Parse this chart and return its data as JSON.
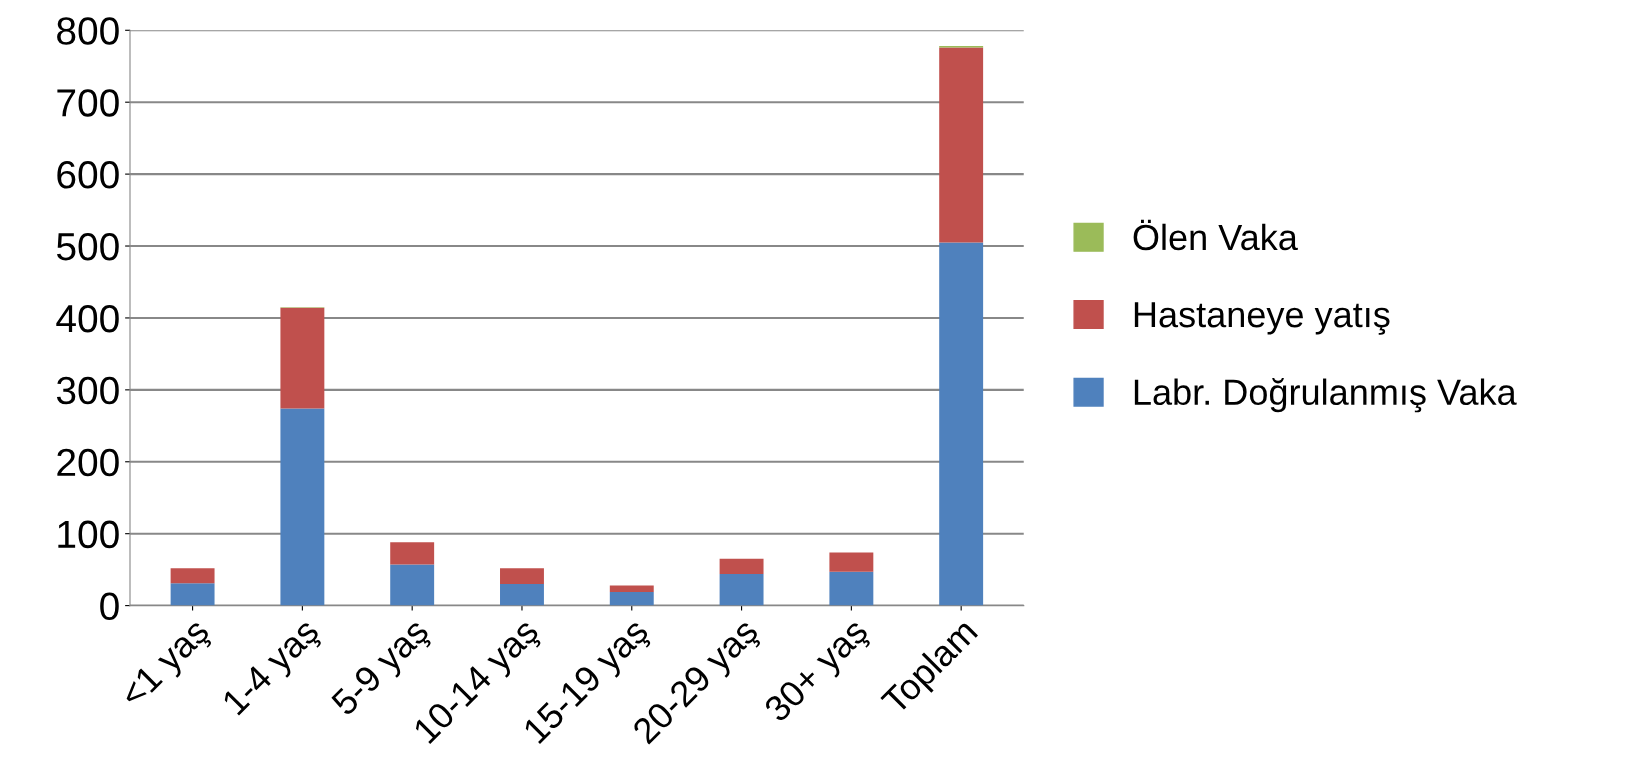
{
  "chart_data": {
    "type": "bar",
    "stacked": true,
    "categories": [
      "<1 yaş",
      "1-4 yaş",
      "5-9 yaş",
      "10-14 yaş",
      "15-19 yaş",
      "20-29 yaş",
      "30+ yaş",
      "Toplam"
    ],
    "series": [
      {
        "name": "Labr. Doğrulanmış Vaka",
        "color": "#4f81bd",
        "values": [
          31,
          274,
          57,
          30,
          19,
          44,
          47,
          505
        ]
      },
      {
        "name": "Hastaneye yatış",
        "color": "#c0504d",
        "values": [
          21,
          140,
          31,
          22,
          9,
          21,
          27,
          271
        ]
      },
      {
        "name": "Ölen Vaka",
        "color": "#9bbb59",
        "values": [
          0,
          1,
          0,
          0,
          0,
          0,
          0,
          2
        ]
      }
    ],
    "ylim": [
      0,
      800
    ],
    "yticks": [
      0,
      100,
      200,
      300,
      400,
      500,
      600,
      700,
      800
    ],
    "grid": "y",
    "legend": "right"
  }
}
